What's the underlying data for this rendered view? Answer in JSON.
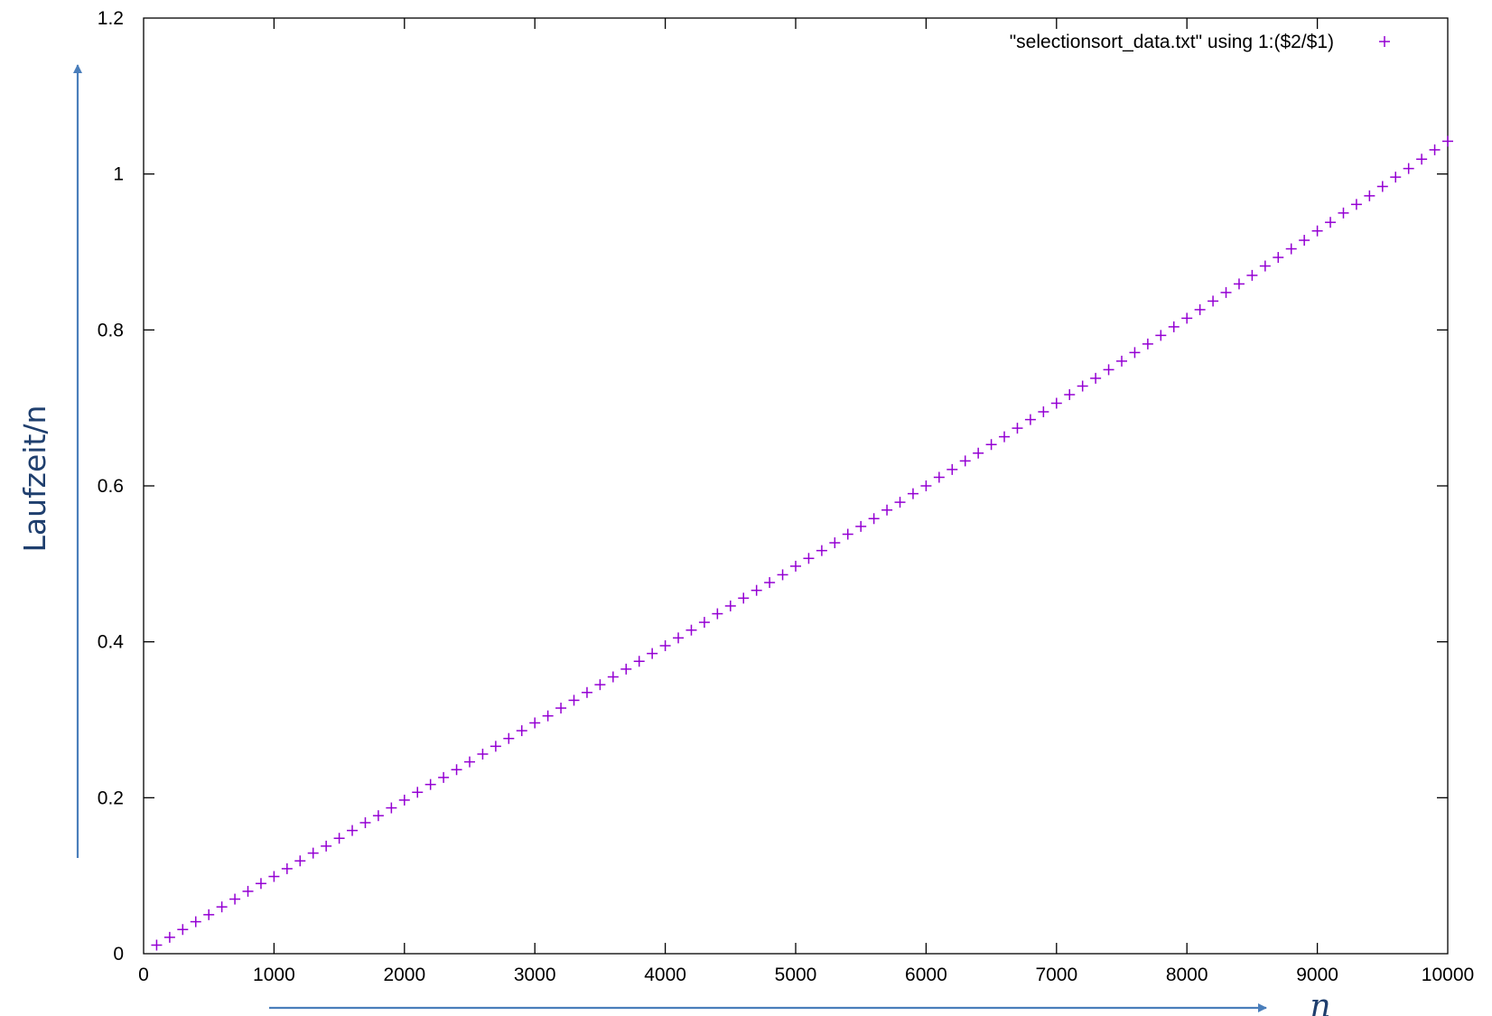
{
  "chart_data": {
    "type": "scatter",
    "xlabel": "n",
    "ylabel": "Laufzeit/n",
    "xlim": [
      0,
      10000
    ],
    "ylim": [
      0,
      1.2
    ],
    "xticks": [
      "0",
      "1000",
      "2000",
      "3000",
      "4000",
      "5000",
      "6000",
      "7000",
      "8000",
      "9000",
      "10000"
    ],
    "yticks": [
      "0",
      "0.2",
      "0.4",
      "0.6",
      "0.8",
      "1",
      "1.2"
    ],
    "grid": false,
    "legend_position": "top-right",
    "marker": "plus",
    "series": [
      {
        "name": "\"selectionsort_data.txt\" using 1:($2/$1)",
        "color": "#9400d3",
        "points": [
          [
            100,
            0.011
          ],
          [
            200,
            0.021
          ],
          [
            300,
            0.031
          ],
          [
            400,
            0.041
          ],
          [
            500,
            0.05
          ],
          [
            600,
            0.06
          ],
          [
            700,
            0.07
          ],
          [
            800,
            0.08
          ],
          [
            900,
            0.09
          ],
          [
            1000,
            0.099
          ],
          [
            1100,
            0.109
          ],
          [
            1200,
            0.119
          ],
          [
            1300,
            0.129
          ],
          [
            1400,
            0.138
          ],
          [
            1500,
            0.148
          ],
          [
            1600,
            0.158
          ],
          [
            1700,
            0.168
          ],
          [
            1800,
            0.177
          ],
          [
            1900,
            0.187
          ],
          [
            2000,
            0.197
          ],
          [
            2100,
            0.207
          ],
          [
            2200,
            0.217
          ],
          [
            2300,
            0.226
          ],
          [
            2400,
            0.236
          ],
          [
            2500,
            0.246
          ],
          [
            2600,
            0.256
          ],
          [
            2700,
            0.266
          ],
          [
            2800,
            0.276
          ],
          [
            2900,
            0.286
          ],
          [
            3000,
            0.296
          ],
          [
            3100,
            0.305
          ],
          [
            3200,
            0.315
          ],
          [
            3300,
            0.325
          ],
          [
            3400,
            0.335
          ],
          [
            3500,
            0.345
          ],
          [
            3600,
            0.355
          ],
          [
            3700,
            0.365
          ],
          [
            3800,
            0.375
          ],
          [
            3900,
            0.385
          ],
          [
            4000,
            0.395
          ],
          [
            4100,
            0.405
          ],
          [
            4200,
            0.415
          ],
          [
            4300,
            0.425
          ],
          [
            4400,
            0.436
          ],
          [
            4500,
            0.446
          ],
          [
            4600,
            0.456
          ],
          [
            4700,
            0.466
          ],
          [
            4800,
            0.476
          ],
          [
            4900,
            0.486
          ],
          [
            5000,
            0.497
          ],
          [
            5100,
            0.507
          ],
          [
            5200,
            0.517
          ],
          [
            5300,
            0.527
          ],
          [
            5400,
            0.538
          ],
          [
            5500,
            0.548
          ],
          [
            5600,
            0.558
          ],
          [
            5700,
            0.569
          ],
          [
            5800,
            0.579
          ],
          [
            5900,
            0.59
          ],
          [
            6000,
            0.6
          ],
          [
            6100,
            0.611
          ],
          [
            6200,
            0.621
          ],
          [
            6300,
            0.632
          ],
          [
            6400,
            0.642
          ],
          [
            6500,
            0.653
          ],
          [
            6600,
            0.663
          ],
          [
            6700,
            0.674
          ],
          [
            6800,
            0.685
          ],
          [
            6900,
            0.695
          ],
          [
            7000,
            0.706
          ],
          [
            7100,
            0.717
          ],
          [
            7200,
            0.728
          ],
          [
            7300,
            0.738
          ],
          [
            7400,
            0.749
          ],
          [
            7500,
            0.76
          ],
          [
            7600,
            0.771
          ],
          [
            7700,
            0.782
          ],
          [
            7800,
            0.793
          ],
          [
            7900,
            0.804
          ],
          [
            8000,
            0.815
          ],
          [
            8100,
            0.826
          ],
          [
            8200,
            0.837
          ],
          [
            8300,
            0.848
          ],
          [
            8400,
            0.859
          ],
          [
            8500,
            0.87
          ],
          [
            8600,
            0.882
          ],
          [
            8700,
            0.893
          ],
          [
            8800,
            0.904
          ],
          [
            8900,
            0.915
          ],
          [
            9000,
            0.927
          ],
          [
            9100,
            0.938
          ],
          [
            9200,
            0.95
          ],
          [
            9300,
            0.961
          ],
          [
            9400,
            0.972
          ],
          [
            9500,
            0.984
          ],
          [
            9600,
            0.996
          ],
          [
            9700,
            1.007
          ],
          [
            9800,
            1.019
          ],
          [
            9900,
            1.031
          ],
          [
            10000,
            1.042
          ]
        ]
      }
    ],
    "axis_arrow_color": "#4a7ebb"
  }
}
